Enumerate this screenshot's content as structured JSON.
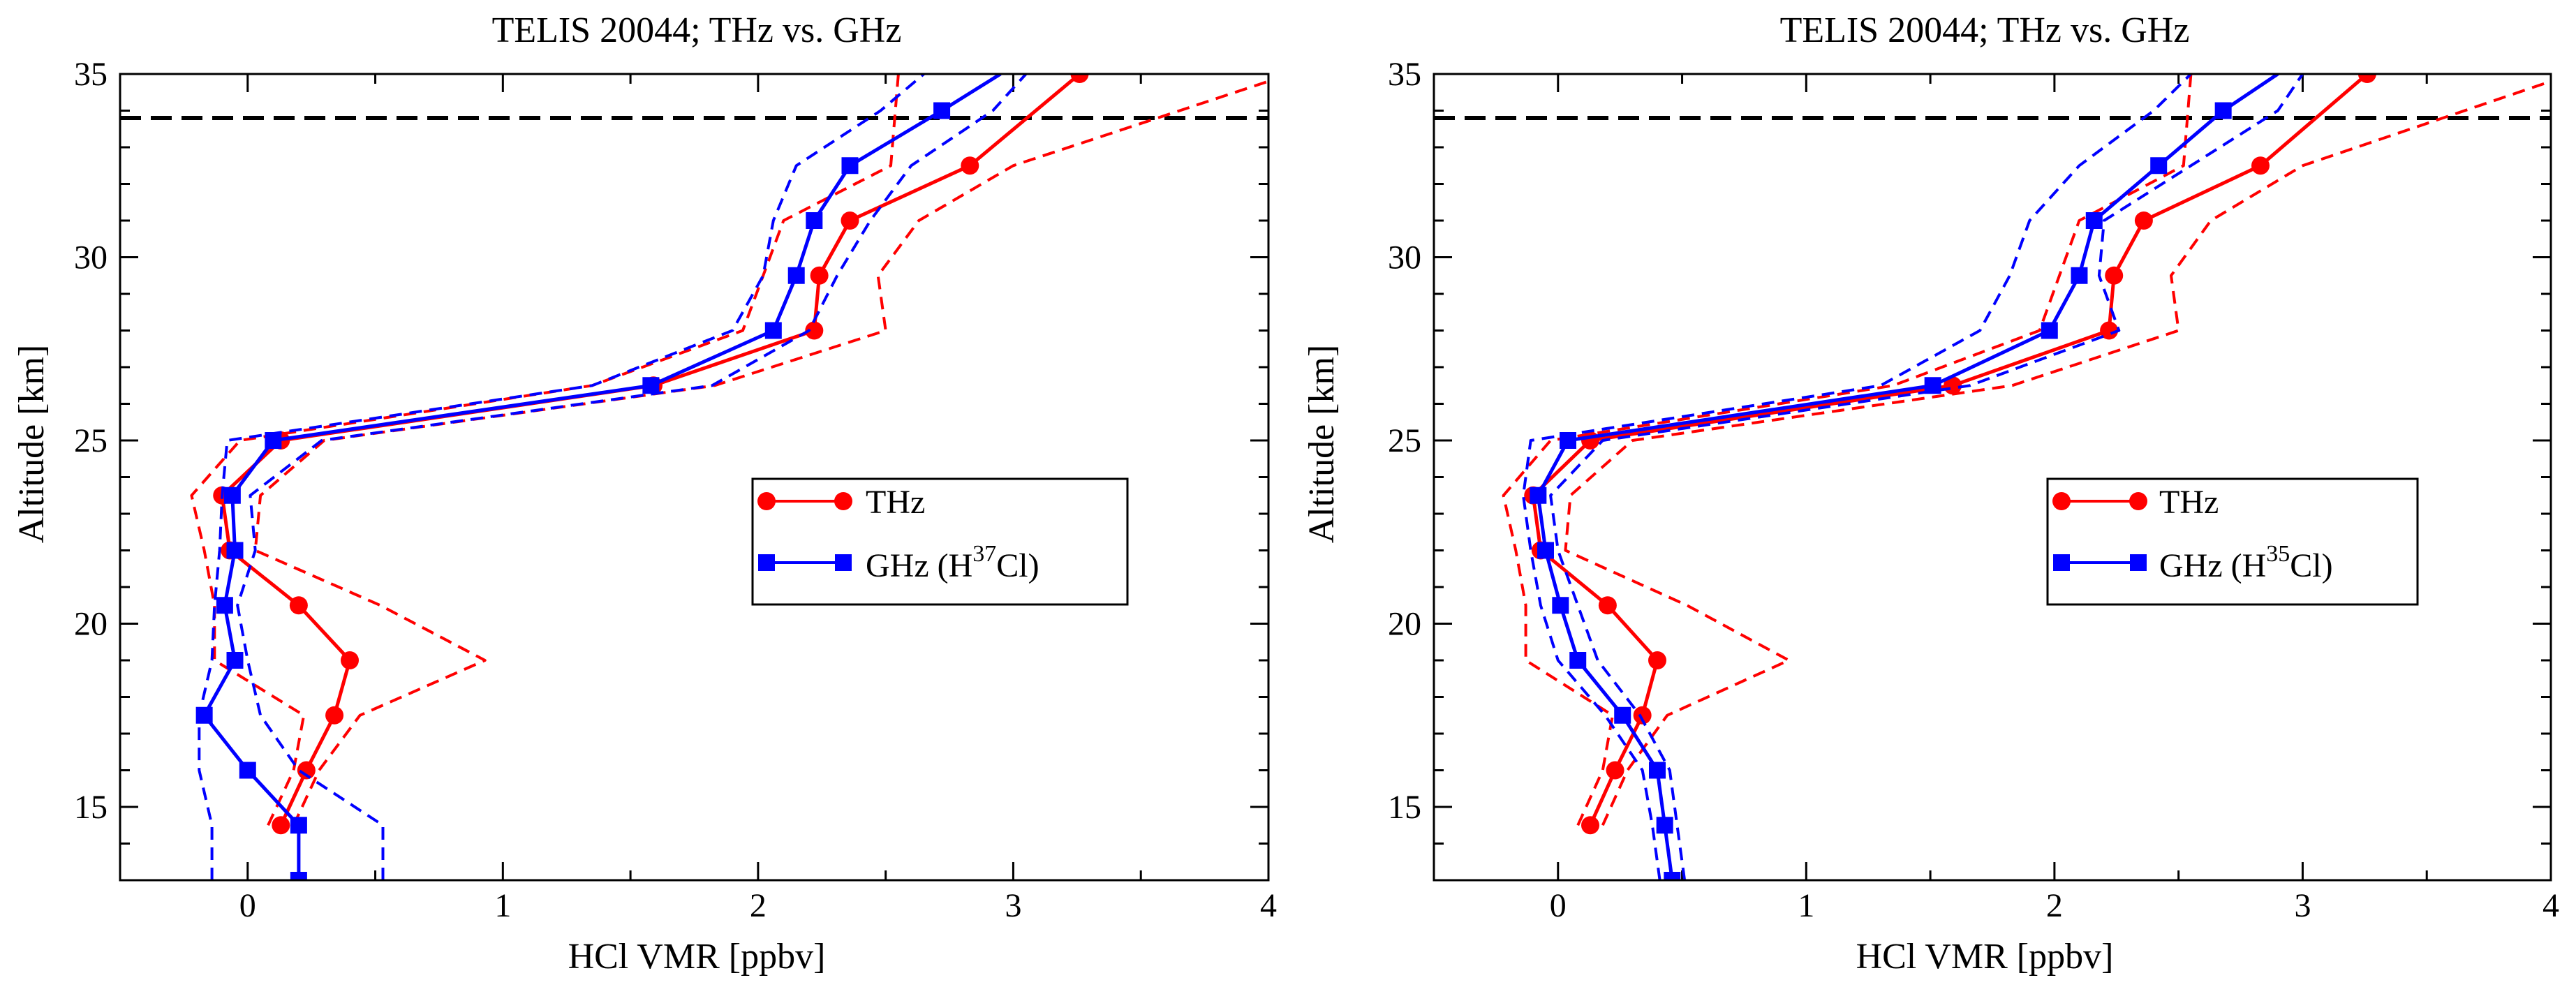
{
  "figure": {
    "panels": [
      {
        "title": "TELIS 20044; THz vs. GHz",
        "xlabel": "HCl VMR [ppbv]",
        "ylabel": "Altitude [km]",
        "legend": {
          "thz_label": "THz",
          "ghz_prefix": "GHz (H",
          "ghz_isotope": "37",
          "ghz_suffix": "Cl)"
        }
      },
      {
        "title": "TELIS 20044; THz vs. GHz",
        "xlabel": "HCl VMR [ppbv]",
        "ylabel": "Altitude [km]",
        "legend": {
          "thz_label": "THz",
          "ghz_prefix": "GHz (H",
          "ghz_isotope": "35",
          "ghz_suffix": "Cl)"
        }
      }
    ]
  },
  "colors": {
    "thz": "#ff0000",
    "ghz": "#0000ff",
    "reference": "#000000"
  },
  "chart_data": [
    {
      "type": "line",
      "title": "TELIS 20044; THz vs. GHz",
      "xlabel": "HCl VMR [ppbv]",
      "ylabel": "Altitude [km]",
      "xlim": [
        -0.5,
        4
      ],
      "ylim": [
        13,
        35
      ],
      "xticks": [
        0,
        1,
        2,
        3,
        4
      ],
      "yticks": [
        15,
        20,
        25,
        30,
        35
      ],
      "reference_altitude": 33.8,
      "legend_position": "center-right",
      "series": [
        {
          "name": "THz",
          "color": "#ff0000",
          "style": "solid",
          "marker": "circle",
          "x": [
            0.13,
            0.23,
            0.34,
            0.4,
            0.2,
            -0.07,
            -0.1,
            0.13,
            1.59,
            2.22,
            2.24,
            2.36,
            2.83,
            3.26
          ],
          "y": [
            14.5,
            16,
            17.5,
            19,
            20.5,
            22,
            23.5,
            25,
            26.5,
            28,
            29.5,
            31,
            32.5,
            35
          ]
        },
        {
          "name": "THz upper bound",
          "color": "#ff0000",
          "style": "dashed",
          "marker": "none",
          "x": [
            0.18,
            0.28,
            0.44,
            0.93,
            0.52,
            0.03,
            0.05,
            0.3,
            1.83,
            2.5,
            2.47,
            2.63,
            3.0,
            4.0
          ],
          "y": [
            14.5,
            16,
            17.5,
            19,
            20.5,
            22,
            23.5,
            25,
            26.5,
            28,
            29.5,
            31,
            32.5,
            34.8
          ]
        },
        {
          "name": "THz lower bound",
          "color": "#ff0000",
          "style": "dashed",
          "marker": "none",
          "x": [
            0.08,
            0.18,
            0.22,
            -0.13,
            -0.13,
            -0.17,
            -0.22,
            -0.03,
            1.35,
            1.94,
            2.02,
            2.1,
            2.52,
            2.55
          ],
          "y": [
            14.5,
            16,
            17.5,
            19,
            20.5,
            22,
            23.5,
            25,
            26.5,
            28,
            29.5,
            31,
            32.5,
            35
          ]
        },
        {
          "name": "GHz (H37Cl)",
          "color": "#0000ff",
          "style": "solid",
          "marker": "square",
          "x": [
            0.2,
            0.2,
            0.0,
            -0.17,
            -0.05,
            -0.09,
            -0.05,
            -0.06,
            0.1,
            1.58,
            2.06,
            2.15,
            2.22,
            2.36,
            2.72
          ],
          "y": [
            13,
            14.5,
            16,
            17.5,
            19,
            20.5,
            22,
            23.5,
            25,
            26.5,
            28,
            29.5,
            31,
            32.5,
            34
          ]
        },
        {
          "name": "GHz upper bound",
          "color": "#0000ff",
          "style": "dashed",
          "marker": "none",
          "x": [
            0.53,
            0.53,
            0.2,
            0.05,
            0.0,
            -0.04,
            0.03,
            0.01,
            0.29,
            1.82,
            2.2,
            2.31,
            2.44,
            2.6,
            2.92,
            3.05
          ],
          "y": [
            13,
            14.5,
            16,
            17.5,
            19,
            20.5,
            22,
            23.5,
            25,
            26.5,
            28,
            29.5,
            31,
            32.5,
            34,
            35
          ]
        },
        {
          "name": "GHz lower bound",
          "color": "#0000ff",
          "style": "dashed",
          "marker": "none",
          "x": [
            -0.14,
            -0.14,
            -0.19,
            -0.19,
            -0.14,
            -0.13,
            -0.11,
            -0.1,
            -0.08,
            1.35,
            1.9,
            2.02,
            2.06,
            2.15,
            2.48,
            2.65
          ],
          "y": [
            13,
            14.5,
            16,
            17.5,
            19,
            20.5,
            22,
            23.5,
            25,
            26.5,
            28,
            29.5,
            31,
            32.5,
            34,
            35
          ]
        },
        {
          "name": "GHz (H37Cl) line top",
          "color": "#0000ff",
          "style": "solid",
          "marker": "none",
          "x": [
            2.72,
            2.95
          ],
          "y": [
            34,
            35
          ]
        }
      ]
    },
    {
      "type": "line",
      "title": "TELIS 20044; THz vs. GHz",
      "xlabel": "HCl VMR [ppbv]",
      "ylabel": "Altitude [km]",
      "xlim": [
        -0.5,
        4
      ],
      "ylim": [
        13,
        35
      ],
      "xticks": [
        0,
        1,
        2,
        3,
        4
      ],
      "yticks": [
        15,
        20,
        25,
        30,
        35
      ],
      "reference_altitude": 33.8,
      "legend_position": "center-right",
      "series": [
        {
          "name": "THz",
          "color": "#ff0000",
          "style": "solid",
          "marker": "circle",
          "x": [
            0.13,
            0.23,
            0.34,
            0.4,
            0.2,
            -0.07,
            -0.1,
            0.13,
            1.59,
            2.22,
            2.24,
            2.36,
            2.83,
            3.26
          ],
          "y": [
            14.5,
            16,
            17.5,
            19,
            20.5,
            22,
            23.5,
            25,
            26.5,
            28,
            29.5,
            31,
            32.5,
            35
          ]
        },
        {
          "name": "THz upper bound",
          "color": "#ff0000",
          "style": "dashed",
          "marker": "none",
          "x": [
            0.18,
            0.28,
            0.44,
            0.93,
            0.52,
            0.03,
            0.05,
            0.3,
            1.83,
            2.5,
            2.47,
            2.63,
            3.0,
            4.0
          ],
          "y": [
            14.5,
            16,
            17.5,
            19,
            20.5,
            22,
            23.5,
            25,
            26.5,
            28,
            29.5,
            31,
            32.5,
            34.8
          ]
        },
        {
          "name": "THz lower bound",
          "color": "#ff0000",
          "style": "dashed",
          "marker": "none",
          "x": [
            0.08,
            0.18,
            0.22,
            -0.13,
            -0.13,
            -0.17,
            -0.22,
            -0.03,
            1.35,
            1.94,
            2.02,
            2.1,
            2.52,
            2.55
          ],
          "y": [
            14.5,
            16,
            17.5,
            19,
            20.5,
            22,
            23.5,
            25,
            26.5,
            28,
            29.5,
            31,
            32.5,
            35
          ]
        },
        {
          "name": "GHz (H35Cl)",
          "color": "#0000ff",
          "style": "solid",
          "marker": "square",
          "x": [
            0.46,
            0.43,
            0.4,
            0.26,
            0.08,
            0.01,
            -0.05,
            -0.08,
            0.04,
            1.51,
            1.98,
            2.1,
            2.16,
            2.42,
            2.68
          ],
          "y": [
            13,
            14.5,
            16,
            17.5,
            19,
            20.5,
            22,
            23.5,
            25,
            26.5,
            28,
            29.5,
            31,
            32.5,
            34
          ]
        },
        {
          "name": "GHz upper bound",
          "color": "#0000ff",
          "style": "dashed",
          "marker": "none",
          "x": [
            0.51,
            0.48,
            0.45,
            0.33,
            0.16,
            0.08,
            0.0,
            -0.03,
            0.18,
            1.66,
            2.26,
            2.18,
            2.2,
            2.55,
            2.9,
            3.0
          ],
          "y": [
            13,
            14.5,
            16,
            17.5,
            19,
            20.5,
            22,
            23.5,
            25,
            26.5,
            28,
            29.5,
            31,
            32.5,
            34,
            35
          ]
        },
        {
          "name": "GHz lower bound",
          "color": "#0000ff",
          "style": "dashed",
          "marker": "none",
          "x": [
            0.41,
            0.38,
            0.34,
            0.19,
            0.0,
            -0.07,
            -0.11,
            -0.14,
            -0.11,
            1.3,
            1.7,
            1.82,
            1.9,
            2.1,
            2.4,
            2.55
          ],
          "y": [
            13,
            14.5,
            16,
            17.5,
            19,
            20.5,
            22,
            23.5,
            25,
            26.5,
            28,
            29.5,
            31,
            32.5,
            34,
            35
          ]
        },
        {
          "name": "GHz (H35Cl) line top",
          "color": "#0000ff",
          "style": "solid",
          "marker": "none",
          "x": [
            2.68,
            2.9
          ],
          "y": [
            34,
            35
          ]
        }
      ]
    }
  ]
}
